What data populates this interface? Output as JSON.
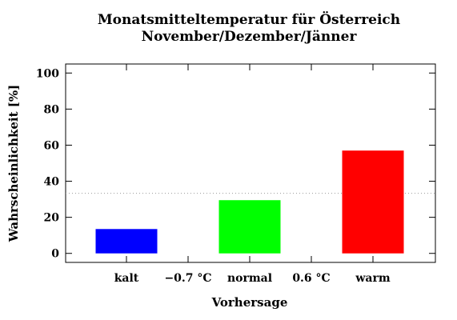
{
  "chart_data": {
    "type": "bar",
    "title_lines": [
      "Monatsmitteltemperatur für Österreich",
      "November/Dezember/Jänner"
    ],
    "xlabel": "Vorhersage",
    "ylabel": "Wahrscheinlichkeit [%]",
    "categories": [
      "kalt",
      "normal",
      "warm"
    ],
    "values": [
      13.5,
      29.5,
      57
    ],
    "colors": [
      "#0000ff",
      "#00ff00",
      "#ff0000"
    ],
    "threshold_labels": [
      "−0.7 °C",
      "0.6 °C"
    ],
    "ylim": [
      -5,
      105
    ],
    "yticks": [
      0,
      20,
      40,
      60,
      80,
      100
    ],
    "reference_line": {
      "value": 33.3,
      "style": "dotted"
    },
    "grid": false
  }
}
